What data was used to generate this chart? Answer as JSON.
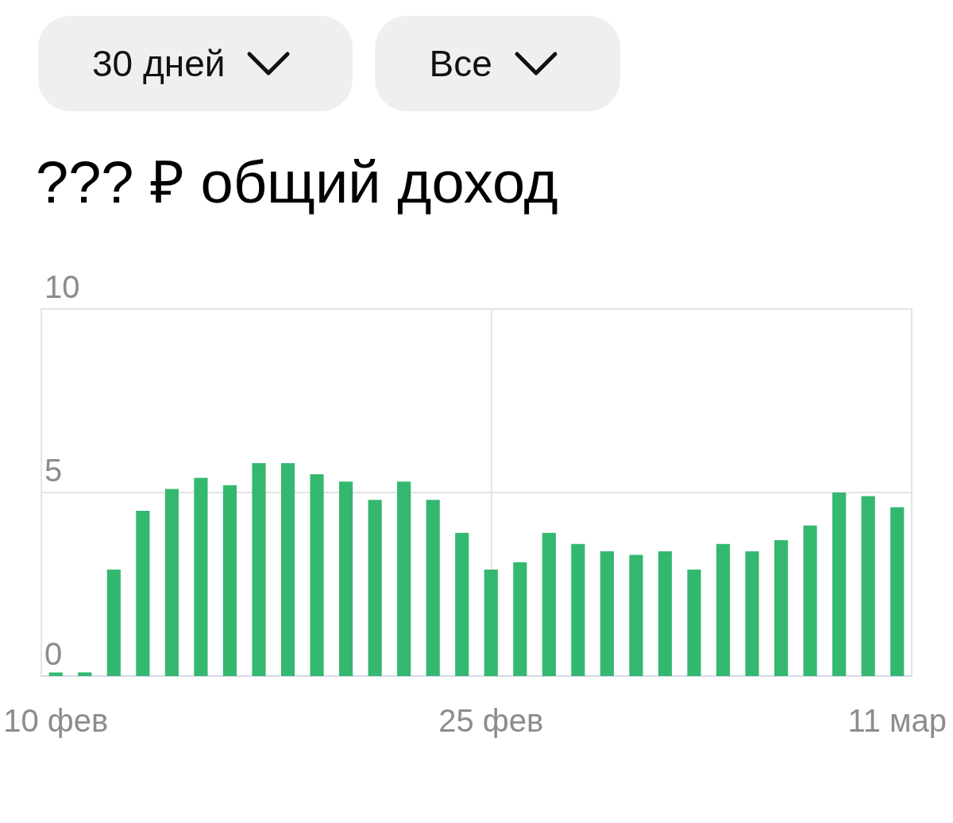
{
  "chart_data": {
    "type": "bar",
    "title": "??? ₽ общий доход",
    "annotations": [
      "30 дней",
      "Все"
    ],
    "categories": [
      "10 фев",
      null,
      null,
      null,
      null,
      null,
      null,
      null,
      null,
      null,
      null,
      null,
      null,
      null,
      null,
      "25 фев",
      null,
      null,
      null,
      null,
      null,
      null,
      null,
      null,
      null,
      null,
      null,
      null,
      null,
      "11 мар"
    ],
    "values": [
      0.1,
      0.1,
      2.9,
      4.5,
      5.1,
      5.4,
      5.2,
      5.8,
      5.8,
      5.5,
      5.3,
      4.8,
      5.3,
      4.8,
      3.9,
      2.9,
      3.1,
      3.9,
      3.6,
      3.4,
      3.3,
      3.4,
      2.9,
      3.6,
      3.4,
      3.7,
      4.1,
      5.0,
      4.9,
      4.6
    ],
    "color": "#34b870",
    "ylim": [
      0,
      10
    ],
    "yticks": [
      0,
      5,
      10
    ],
    "grid": true
  }
}
